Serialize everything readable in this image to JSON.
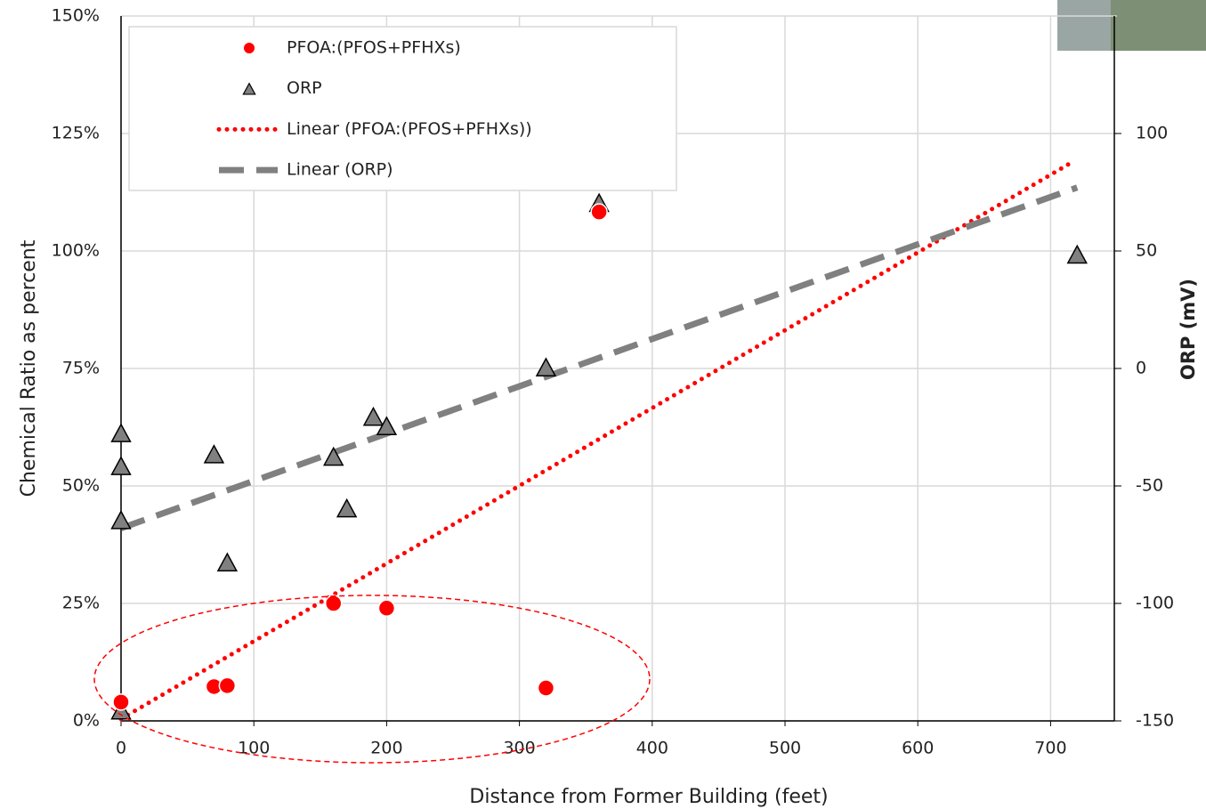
{
  "chart_data": {
    "type": "scatter",
    "x_label": "Distance from Former Building (feet)",
    "y_label": "Chemical Ratio as percent",
    "y2_label": "ORP (mV)",
    "xlim": [
      0,
      750
    ],
    "xticks": [
      0,
      100,
      200,
      300,
      400,
      500,
      600,
      700
    ],
    "ylim": [
      0,
      150
    ],
    "yticks": [
      {
        "value": 0,
        "label": "0%"
      },
      {
        "value": 25,
        "label": "25%"
      },
      {
        "value": 50,
        "label": "50%"
      },
      {
        "value": 75,
        "label": "75%"
      },
      {
        "value": 100,
        "label": "100%"
      },
      {
        "value": 125,
        "label": "125%"
      },
      {
        "value": 150,
        "label": "150%"
      }
    ],
    "y2lim": [
      -150,
      150
    ],
    "y2ticks": [
      -150,
      -100,
      -50,
      0,
      50,
      100
    ],
    "grid": true,
    "legend": "upper left",
    "series": [
      {
        "name": "PFOA:(PFOS+PFHXs)",
        "color": "#ff0000",
        "marker": "circle",
        "x": [
          0,
          70,
          80,
          160,
          200,
          320,
          360
        ],
        "values": [
          4,
          7.3,
          7.5,
          25,
          24,
          7,
          108.3
        ]
      },
      {
        "name": "ORP",
        "color": "#808080",
        "marker": "triangle",
        "axis": "y2",
        "x": [
          0,
          0,
          0,
          0,
          70,
          80,
          160,
          170,
          190,
          200,
          320,
          360,
          720
        ],
        "values": [
          -28,
          -42,
          -65,
          -146,
          -37,
          -83,
          -38,
          -60,
          -21,
          -25,
          0,
          70,
          48
        ]
      },
      {
        "name": "Linear (PFOA:(PFOS+PFHXs))",
        "color": "#ff0000",
        "marker": "dotted-line",
        "x": [
          0,
          715
        ],
        "values": [
          0.4,
          118.7
        ]
      },
      {
        "name": "Linear (ORP)",
        "color": "#808080",
        "marker": "dashed-line",
        "axis": "y2",
        "x": [
          0,
          720
        ],
        "values": [
          -68,
          77
        ]
      }
    ]
  }
}
